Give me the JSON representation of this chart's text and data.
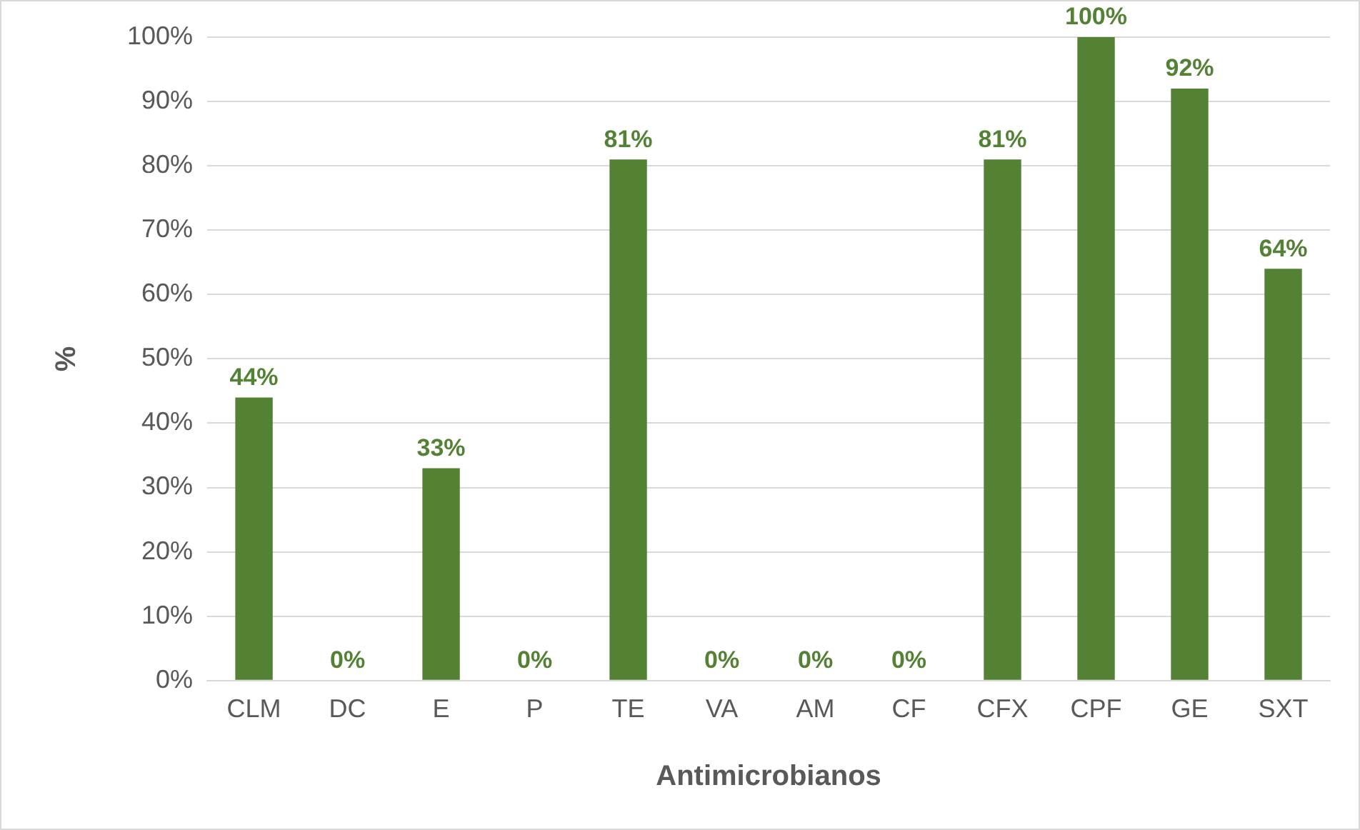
{
  "chart_data": {
    "type": "bar",
    "xlabel": "Antimicrobianos",
    "ylabel": "%",
    "categories": [
      "CLM",
      "DC",
      "E",
      "P",
      "TE",
      "VA",
      "AM",
      "CF",
      "CFX",
      "CPF",
      "GE",
      "SXT"
    ],
    "values": [
      44,
      0,
      33,
      0,
      81,
      0,
      0,
      0,
      81,
      100,
      92,
      64
    ],
    "value_labels": [
      "44%",
      "0%",
      "33%",
      "0%",
      "81%",
      "0%",
      "0%",
      "0%",
      "81%",
      "100%",
      "92%",
      "64%"
    ],
    "color": "#548235",
    "ylim": [
      0,
      100
    ],
    "yticks": [
      {
        "value": 0,
        "label": "0%"
      },
      {
        "value": 10,
        "label": "10%"
      },
      {
        "value": 20,
        "label": "20%"
      },
      {
        "value": 30,
        "label": "30%"
      },
      {
        "value": 40,
        "label": "40%"
      },
      {
        "value": 50,
        "label": "50%"
      },
      {
        "value": 60,
        "label": "60%"
      },
      {
        "value": 70,
        "label": "70%"
      },
      {
        "value": 80,
        "label": "80%"
      },
      {
        "value": 90,
        "label": "90%"
      },
      {
        "value": 100,
        "label": "100%"
      }
    ],
    "grid": "y",
    "legend": false
  }
}
